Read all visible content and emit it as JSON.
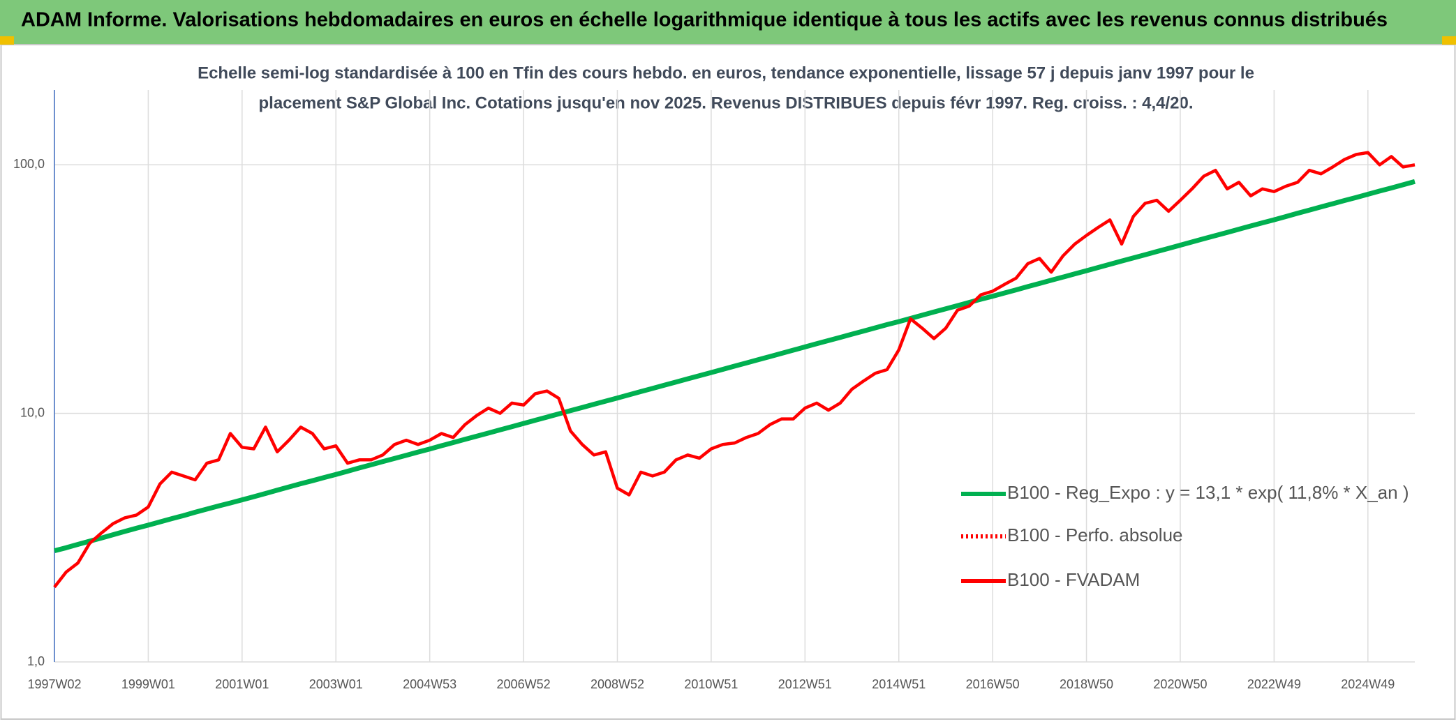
{
  "header": {
    "title": "ADAM Informe. Valorisations hebdomadaires en euros en échelle logarithmique identique à tous les actifs avec les revenus connus distribués"
  },
  "chart_data": {
    "type": "line",
    "title": "Echelle semi-log standardisée à 100 en Tfin des cours hebdo. en euros, tendance exponentielle, lissage 57 j depuis janv 1997 pour le",
    "subtitle": "placement S&P Global Inc. Cotations jusqu'en nov 2025. Revenus DISTRIBUES depuis févr 1997. Reg. croiss. : 4,4/20.",
    "log_y": true,
    "grid": true,
    "legend": "right",
    "ylim": [
      1,
      200
    ],
    "yticks": [
      {
        "value": 1,
        "label": "1,0"
      },
      {
        "value": 10,
        "label": "10,0"
      },
      {
        "value": 100,
        "label": "100,0"
      }
    ],
    "categories": [
      "1997W02",
      null,
      null,
      null,
      null,
      null,
      null,
      null,
      "1999W01",
      null,
      null,
      null,
      null,
      null,
      null,
      null,
      "2001W01",
      null,
      null,
      null,
      null,
      null,
      null,
      null,
      "2003W01",
      null,
      null,
      null,
      null,
      null,
      null,
      null,
      "2004W53",
      null,
      null,
      null,
      null,
      null,
      null,
      null,
      "2006W52",
      null,
      null,
      null,
      null,
      null,
      null,
      null,
      "2008W52",
      null,
      null,
      null,
      null,
      null,
      null,
      null,
      "2010W51",
      null,
      null,
      null,
      null,
      null,
      null,
      null,
      "2012W51",
      null,
      null,
      null,
      null,
      null,
      null,
      null,
      "2014W51",
      null,
      null,
      null,
      null,
      null,
      null,
      null,
      "2016W50",
      null,
      null,
      null,
      null,
      null,
      null,
      null,
      "2018W50",
      null,
      null,
      null,
      null,
      null,
      null,
      null,
      "2020W50",
      null,
      null,
      null,
      null,
      null,
      null,
      null,
      "2022W49",
      null,
      null,
      null,
      null,
      null,
      null,
      null,
      "2024W49",
      null,
      null,
      null,
      null
    ],
    "series": [
      {
        "name": "B100 - Reg_Expo : y = 13,1 * exp( 11,8% *  X_an )",
        "color": "#00b050",
        "style": "solid",
        "values": [
          2.8,
          2.88,
          2.97,
          3.06,
          3.15,
          3.25,
          3.35,
          3.45,
          3.55,
          3.66,
          3.77,
          3.88,
          4.0,
          4.12,
          4.24,
          4.36,
          4.49,
          4.62,
          4.76,
          4.91,
          5.06,
          5.21,
          5.36,
          5.52,
          5.68,
          5.85,
          6.03,
          6.21,
          6.4,
          6.59,
          6.78,
          6.99,
          7.19,
          7.41,
          7.63,
          7.86,
          8.09,
          8.33,
          8.58,
          8.84,
          9.11,
          9.38,
          9.66,
          9.95,
          10.25,
          10.56,
          10.88,
          11.2,
          11.53,
          11.88,
          12.24,
          12.6,
          12.98,
          13.37,
          13.77,
          14.18,
          14.6,
          15.04,
          15.49,
          15.95,
          16.43,
          16.93,
          17.43,
          17.96,
          18.5,
          19.06,
          19.63,
          20.21,
          20.82,
          21.44,
          22.09,
          22.75,
          23.4,
          24.1,
          24.83,
          25.57,
          26.34,
          27.13,
          27.94,
          28.78,
          29.6,
          30.49,
          31.4,
          32.35,
          33.32,
          34.31,
          35.34,
          36.41,
          37.5,
          38.63,
          39.78,
          40.98,
          42.21,
          43.47,
          44.78,
          46.12,
          47.5,
          48.93,
          50.39,
          51.9,
          53.46,
          55.07,
          56.72,
          58.42,
          60.1,
          61.9,
          63.8,
          65.7,
          67.7,
          69.7,
          71.8,
          73.9,
          76.1,
          78.4,
          80.7,
          83.1,
          85.6
        ]
      },
      {
        "name": "B100 - Perfo. absolue",
        "color": "#ff0000",
        "style": "dotted",
        "values": [
          null,
          null,
          null,
          null,
          null,
          null,
          null,
          null,
          null,
          null,
          null,
          null,
          null,
          null,
          null,
          null,
          null,
          null,
          null,
          null,
          null,
          null,
          null,
          null,
          null,
          null,
          null,
          null,
          null,
          null,
          null,
          null,
          null,
          null,
          null,
          null,
          null,
          null,
          null,
          null,
          null,
          null,
          null,
          null,
          null,
          null,
          null,
          null,
          null,
          null,
          null,
          null,
          null,
          null,
          null,
          null,
          null,
          null,
          null,
          null,
          null,
          null,
          null,
          null,
          null,
          null,
          null,
          null,
          null,
          null,
          null,
          null,
          null,
          null,
          null,
          null,
          null,
          null,
          null,
          null,
          null,
          null,
          null,
          null,
          null,
          null,
          null,
          null,
          null,
          null,
          null,
          null,
          null,
          null,
          null,
          null,
          null,
          null,
          null,
          null,
          null,
          null,
          null,
          null,
          null,
          null,
          null,
          null,
          null,
          null,
          null,
          null,
          null,
          null,
          null,
          null,
          null
        ]
      },
      {
        "name": "B100 - FVADAM",
        "color": "#ff0000",
        "style": "solid",
        "values": [
          2.0,
          2.3,
          2.5,
          3.0,
          3.3,
          3.6,
          3.8,
          3.9,
          4.2,
          5.2,
          5.8,
          5.6,
          5.4,
          6.3,
          6.5,
          8.3,
          7.3,
          7.2,
          8.8,
          7.0,
          7.8,
          8.8,
          8.3,
          7.2,
          7.4,
          6.3,
          6.5,
          6.5,
          6.8,
          7.5,
          7.8,
          7.5,
          7.8,
          8.3,
          8.0,
          9.0,
          9.8,
          10.5,
          10.0,
          11.0,
          10.8,
          12.0,
          12.3,
          11.5,
          8.5,
          7.5,
          6.8,
          7.0,
          5.0,
          4.7,
          5.8,
          5.6,
          5.8,
          6.5,
          6.8,
          6.6,
          7.2,
          7.5,
          7.6,
          8.0,
          8.3,
          9.0,
          9.5,
          9.5,
          10.5,
          11.0,
          10.3,
          11.0,
          12.5,
          13.5,
          14.5,
          15.0,
          18.0,
          24.0,
          22.0,
          20.0,
          22.0,
          26.0,
          27.0,
          30.0,
          31.0,
          33.0,
          35.0,
          40.0,
          42.0,
          37.0,
          43.0,
          48.0,
          52.0,
          56.0,
          60.0,
          48.0,
          62.0,
          70.0,
          72.0,
          65.0,
          72.0,
          80.0,
          90.0,
          95.0,
          80.0,
          85.0,
          75.0,
          80.0,
          78.0,
          82.0,
          85.0,
          95.0,
          92.0,
          98.0,
          105.0,
          110.0,
          112.0,
          100.0,
          108.0,
          98.0,
          100.0
        ]
      }
    ]
  }
}
